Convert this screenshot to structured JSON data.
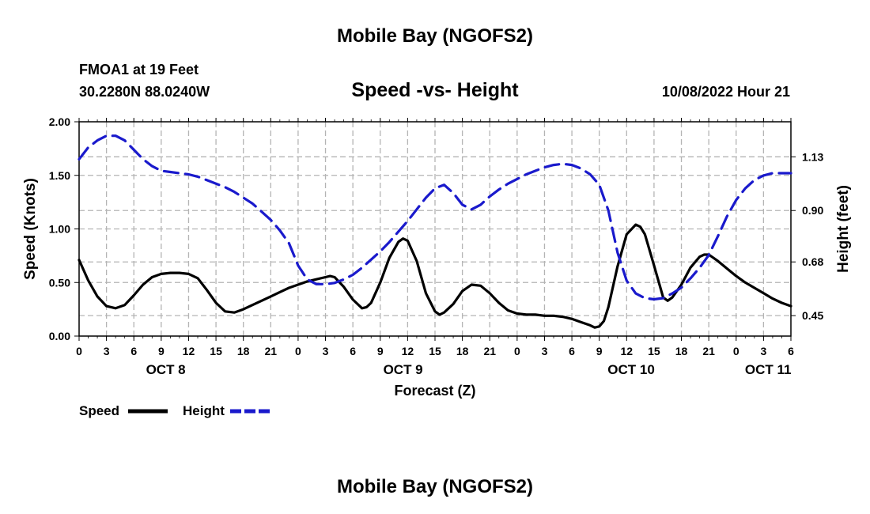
{
  "header": {
    "title": "Mobile Bay (NGOFS2)",
    "station": "FMOA1 at 19 Feet",
    "coords": "30.2280N  88.0240W",
    "subtitle": "Speed -vs- Height",
    "datetime": "10/08/2022 Hour 21"
  },
  "footer": {
    "title": "Mobile Bay (NGOFS2)"
  },
  "colors": {
    "speed": "#000000",
    "height": "#1a1acc",
    "grid": "#b4b4b4"
  },
  "chart_data": {
    "type": "line",
    "xlabel": "Forecast (Z)",
    "ylabel_left": "Speed (Knots)",
    "ylabel_right": "Height (feet)",
    "x_unit": "hours since OCT 8 00Z",
    "xlim": [
      0,
      78
    ],
    "ylim_left": [
      0,
      2.0
    ],
    "ylim_right": [
      0.3625,
      1.28
    ],
    "left_ticks": [
      "0.00",
      "0.50",
      "1.00",
      "1.50",
      "2.00"
    ],
    "left_tick_values": [
      0,
      0.5,
      1.0,
      1.5,
      2.0
    ],
    "right_ticks": [
      "0.45",
      "0.68",
      "0.90",
      "1.13"
    ],
    "right_tick_values": [
      0.45,
      0.68,
      0.9,
      1.13
    ],
    "x_tick_labels": [
      "0",
      "3",
      "6",
      "9",
      "12",
      "15",
      "18",
      "21",
      "0",
      "3",
      "6",
      "9",
      "12",
      "15",
      "18",
      "21",
      "0",
      "3",
      "6",
      "9",
      "12",
      "15",
      "18",
      "21",
      "0",
      "3",
      "6"
    ],
    "x_tick_hours": [
      0,
      3,
      6,
      9,
      12,
      15,
      18,
      21,
      24,
      27,
      30,
      33,
      36,
      39,
      42,
      45,
      48,
      51,
      54,
      57,
      60,
      63,
      66,
      69,
      72,
      75,
      78
    ],
    "day_labels": [
      {
        "label": "OCT 8",
        "hour": 9.5
      },
      {
        "label": "OCT 9",
        "hour": 35.5
      },
      {
        "label": "OCT 10",
        "hour": 60.5
      },
      {
        "label": "OCT 11",
        "hour": 75.5
      }
    ],
    "legend": [
      {
        "name": "Speed",
        "style": "solid"
      },
      {
        "name": "Height",
        "style": "dashed"
      }
    ],
    "series": [
      {
        "name": "Speed",
        "axis": "left",
        "style": "solid",
        "points": [
          [
            0,
            0.71
          ],
          [
            1,
            0.52
          ],
          [
            2,
            0.37
          ],
          [
            3,
            0.28
          ],
          [
            4,
            0.26
          ],
          [
            5,
            0.29
          ],
          [
            6,
            0.38
          ],
          [
            7,
            0.48
          ],
          [
            8,
            0.55
          ],
          [
            9,
            0.58
          ],
          [
            10,
            0.59
          ],
          [
            11,
            0.59
          ],
          [
            12,
            0.58
          ],
          [
            13,
            0.54
          ],
          [
            14,
            0.43
          ],
          [
            15,
            0.31
          ],
          [
            16,
            0.23
          ],
          [
            17,
            0.22
          ],
          [
            18,
            0.25
          ],
          [
            19,
            0.29
          ],
          [
            20,
            0.33
          ],
          [
            21,
            0.37
          ],
          [
            22,
            0.41
          ],
          [
            23,
            0.45
          ],
          [
            24,
            0.48
          ],
          [
            25,
            0.51
          ],
          [
            26,
            0.53
          ],
          [
            27,
            0.55
          ],
          [
            27.5,
            0.56
          ],
          [
            28,
            0.55
          ],
          [
            29,
            0.46
          ],
          [
            30,
            0.34
          ],
          [
            31,
            0.26
          ],
          [
            31.5,
            0.27
          ],
          [
            32,
            0.31
          ],
          [
            33,
            0.5
          ],
          [
            34,
            0.73
          ],
          [
            35,
            0.88
          ],
          [
            35.5,
            0.91
          ],
          [
            36,
            0.89
          ],
          [
            37,
            0.7
          ],
          [
            38,
            0.4
          ],
          [
            39,
            0.23
          ],
          [
            39.5,
            0.2
          ],
          [
            40,
            0.22
          ],
          [
            41,
            0.3
          ],
          [
            42,
            0.42
          ],
          [
            43,
            0.48
          ],
          [
            44,
            0.47
          ],
          [
            45,
            0.4
          ],
          [
            46,
            0.31
          ],
          [
            47,
            0.24
          ],
          [
            48,
            0.21
          ],
          [
            49,
            0.2
          ],
          [
            50,
            0.2
          ],
          [
            51,
            0.19
          ],
          [
            52,
            0.19
          ],
          [
            53,
            0.18
          ],
          [
            54,
            0.16
          ],
          [
            55,
            0.13
          ],
          [
            56,
            0.1
          ],
          [
            56.5,
            0.08
          ],
          [
            57,
            0.09
          ],
          [
            57.5,
            0.14
          ],
          [
            58,
            0.27
          ],
          [
            59,
            0.65
          ],
          [
            60,
            0.95
          ],
          [
            61,
            1.04
          ],
          [
            61.5,
            1.02
          ],
          [
            62,
            0.95
          ],
          [
            63,
            0.66
          ],
          [
            64,
            0.36
          ],
          [
            64.5,
            0.33
          ],
          [
            65,
            0.36
          ],
          [
            66,
            0.48
          ],
          [
            67,
            0.64
          ],
          [
            68,
            0.74
          ],
          [
            68.5,
            0.76
          ],
          [
            69,
            0.76
          ],
          [
            70,
            0.7
          ],
          [
            71,
            0.63
          ],
          [
            72,
            0.56
          ],
          [
            73,
            0.5
          ],
          [
            74,
            0.45
          ],
          [
            75,
            0.4
          ],
          [
            76,
            0.35
          ],
          [
            77,
            0.31
          ],
          [
            78,
            0.28
          ]
        ]
      },
      {
        "name": "Height",
        "axis": "right",
        "style": "dashed",
        "points": [
          [
            0,
            1.12
          ],
          [
            1,
            1.17
          ],
          [
            2,
            1.2
          ],
          [
            3,
            1.22
          ],
          [
            4,
            1.22
          ],
          [
            5,
            1.2
          ],
          [
            6,
            1.16
          ],
          [
            7,
            1.12
          ],
          [
            8,
            1.09
          ],
          [
            9,
            1.07
          ],
          [
            10,
            1.065
          ],
          [
            11,
            1.06
          ],
          [
            12,
            1.055
          ],
          [
            13,
            1.045
          ],
          [
            14,
            1.03
          ],
          [
            15,
            1.015
          ],
          [
            16,
            1.0
          ],
          [
            17,
            0.98
          ],
          [
            18,
            0.955
          ],
          [
            19,
            0.93
          ],
          [
            20,
            0.895
          ],
          [
            21,
            0.86
          ],
          [
            22,
            0.815
          ],
          [
            23,
            0.76
          ],
          [
            24,
            0.665
          ],
          [
            25,
            0.605
          ],
          [
            26,
            0.585
          ],
          [
            27,
            0.585
          ],
          [
            28,
            0.59
          ],
          [
            29,
            0.605
          ],
          [
            30,
            0.625
          ],
          [
            31,
            0.655
          ],
          [
            32,
            0.69
          ],
          [
            33,
            0.725
          ],
          [
            34,
            0.765
          ],
          [
            35,
            0.81
          ],
          [
            36,
            0.855
          ],
          [
            37,
            0.905
          ],
          [
            38,
            0.955
          ],
          [
            39,
            0.995
          ],
          [
            40,
            1.01
          ],
          [
            41,
            0.975
          ],
          [
            42,
            0.925
          ],
          [
            43,
            0.905
          ],
          [
            44,
            0.925
          ],
          [
            45,
            0.96
          ],
          [
            46,
            0.99
          ],
          [
            47,
            1.015
          ],
          [
            48,
            1.035
          ],
          [
            49,
            1.055
          ],
          [
            50,
            1.07
          ],
          [
            51,
            1.085
          ],
          [
            52,
            1.095
          ],
          [
            53,
            1.1
          ],
          [
            54,
            1.095
          ],
          [
            55,
            1.08
          ],
          [
            56,
            1.055
          ],
          [
            57,
            1.01
          ],
          [
            58,
            0.9
          ],
          [
            59,
            0.72
          ],
          [
            60,
            0.6
          ],
          [
            61,
            0.545
          ],
          [
            62,
            0.525
          ],
          [
            63,
            0.52
          ],
          [
            64,
            0.525
          ],
          [
            65,
            0.545
          ],
          [
            66,
            0.57
          ],
          [
            67,
            0.61
          ],
          [
            68,
            0.655
          ],
          [
            69,
            0.71
          ],
          [
            70,
            0.79
          ],
          [
            71,
            0.875
          ],
          [
            72,
            0.945
          ],
          [
            73,
            0.995
          ],
          [
            74,
            1.03
          ],
          [
            75,
            1.05
          ],
          [
            76,
            1.06
          ],
          [
            77,
            1.06
          ],
          [
            78,
            1.06
          ]
        ]
      }
    ]
  }
}
